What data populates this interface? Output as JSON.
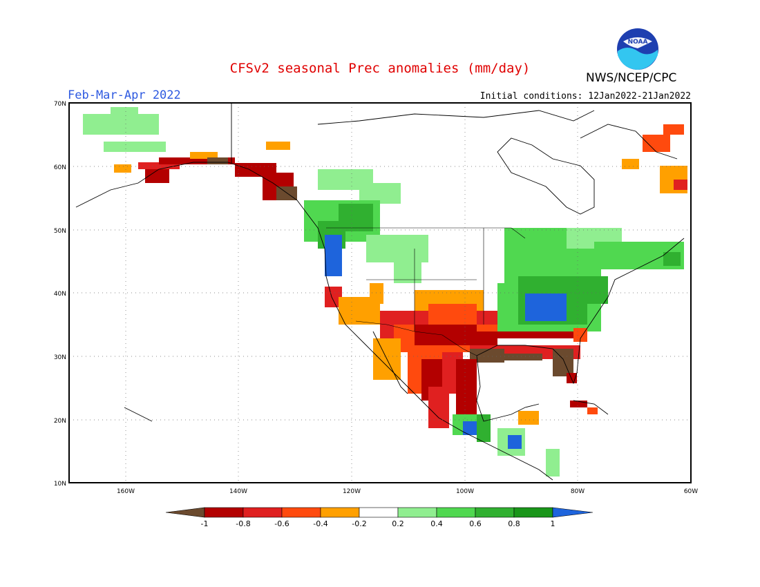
{
  "title": "CFSv2 seasonal Prec anomalies (mm/day)",
  "period": "Feb-Mar-Apr 2022",
  "initial_conditions": "Initial conditions: 12Jan2022-21Jan2022",
  "agency": "NWS/NCEP/CPC",
  "logo_text": "NOAA",
  "lat_labels": [
    "70N",
    "60N",
    "50N",
    "40N",
    "30N",
    "20N",
    "10N"
  ],
  "lon_labels": [
    "160W",
    "140W",
    "120W",
    "100W",
    "80W",
    "60W"
  ],
  "colorbar": {
    "labels": [
      "-1",
      "-0.8",
      "-0.6",
      "-0.4",
      "-0.2",
      "0.2",
      "0.4",
      "0.6",
      "0.8",
      "1"
    ],
    "colors": [
      "#6b4a2e",
      "#b30000",
      "#e02020",
      "#ff4a0e",
      "#ffa000",
      "#ffffff",
      "#90ee90",
      "#50d850",
      "#30b030",
      "#1a961a",
      "#1e64dc"
    ]
  },
  "colors": {
    "brown": "#6b4a2e",
    "darkred": "#b30000",
    "red": "#e02020",
    "orange_red": "#ff4a0e",
    "orange": "#ffa000",
    "lightgreen": "#90ee90",
    "green": "#50d850",
    "midgreen": "#30b030",
    "darkgreen": "#1a961a",
    "blue": "#1e64dc"
  }
}
